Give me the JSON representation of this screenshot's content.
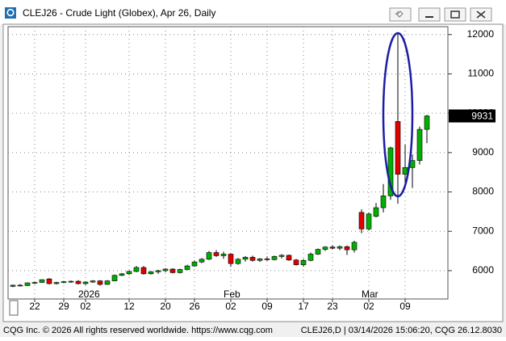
{
  "chart_data": {
    "type": "candlestick",
    "title": "CLEJ26 - Crude Light (Globex), Apr 26, Daily",
    "categories": [
      null,
      null,
      null,
      "22",
      null,
      null,
      null,
      "29",
      null,
      null,
      "02",
      null,
      null,
      null,
      null,
      null,
      "12",
      null,
      null,
      null,
      null,
      "20",
      null,
      null,
      null,
      "26",
      null,
      null,
      null,
      null,
      "02",
      null,
      null,
      null,
      null,
      "09",
      null,
      null,
      null,
      null,
      "17",
      null,
      null,
      null,
      "23",
      null,
      null,
      null,
      null,
      "02",
      null,
      null,
      null,
      null,
      "09",
      null,
      null,
      null
    ],
    "category_groups": [
      null,
      null,
      null,
      null,
      null,
      null,
      null,
      null,
      null,
      null,
      "2026",
      null,
      null,
      null,
      null,
      null,
      null,
      null,
      null,
      null,
      null,
      null,
      null,
      null,
      null,
      null,
      null,
      null,
      null,
      null,
      "Feb",
      null,
      null,
      null,
      null,
      null,
      null,
      null,
      null,
      null,
      null,
      null,
      null,
      null,
      null,
      null,
      null,
      null,
      null,
      "Mar",
      null,
      null,
      null,
      null,
      null,
      null,
      null,
      null
    ],
    "open": [
      5600,
      5630,
      5620,
      5690,
      5700,
      5790,
      5670,
      5700,
      5720,
      5730,
      5670,
      5710,
      5740,
      5650,
      5740,
      5880,
      5920,
      5980,
      6080,
      5920,
      5970,
      6000,
      6040,
      5950,
      6030,
      6120,
      6220,
      6290,
      6460,
      6380,
      6420,
      6180,
      6290,
      6340,
      6260,
      6300,
      6280,
      6360,
      6390,
      6270,
      6150,
      6260,
      6420,
      6540,
      6600,
      6570,
      6610,
      6530,
      7480,
      7060,
      7380,
      7600,
      7900,
      9790,
      8450,
      8620,
      8800,
      9590
    ],
    "high": [
      5650,
      5660,
      5700,
      5720,
      5780,
      5810,
      5720,
      5740,
      5750,
      5760,
      5730,
      5760,
      5760,
      5760,
      5900,
      5940,
      6000,
      6120,
      6120,
      5990,
      6020,
      6060,
      6060,
      6050,
      6150,
      6260,
      6320,
      6500,
      6520,
      6480,
      6440,
      6320,
      6370,
      6380,
      6320,
      6360,
      6380,
      6420,
      6410,
      6300,
      6300,
      6460,
      6560,
      6620,
      6640,
      6640,
      6640,
      6760,
      7560,
      7480,
      7720,
      8200,
      9150,
      12050,
      9200,
      8950,
      9660,
      9960
    ],
    "low": [
      5580,
      5600,
      5610,
      5660,
      5690,
      5650,
      5650,
      5680,
      5690,
      5650,
      5640,
      5690,
      5620,
      5640,
      5730,
      5860,
      5890,
      5960,
      5900,
      5900,
      5920,
      5960,
      5930,
      5930,
      6010,
      6100,
      6190,
      6270,
      6350,
      6300,
      6100,
      6150,
      6230,
      6230,
      6220,
      6250,
      6260,
      6310,
      6250,
      6130,
      6100,
      6240,
      6400,
      6500,
      6540,
      6520,
      6400,
      6460,
      6950,
      7020,
      7350,
      7480,
      7800,
      7700,
      8150,
      8100,
      8700,
      9240
    ],
    "close": [
      5630,
      5620,
      5690,
      5700,
      5770,
      5670,
      5700,
      5720,
      5730,
      5670,
      5710,
      5740,
      5650,
      5740,
      5880,
      5920,
      5980,
      6080,
      5920,
      5970,
      6000,
      6040,
      5950,
      6030,
      6120,
      6220,
      6290,
      6460,
      6380,
      6420,
      6180,
      6290,
      6340,
      6260,
      6300,
      6280,
      6360,
      6390,
      6270,
      6150,
      6260,
      6420,
      6540,
      6600,
      6570,
      6610,
      6530,
      6720,
      7060,
      7440,
      7600,
      7900,
      9120,
      8450,
      8620,
      8800,
      9590,
      9931
    ],
    "up_color": "#00b000",
    "down_color": "#e00000",
    "ylim": [
      5280,
      12200
    ],
    "yticks": [
      6000,
      7000,
      8000,
      9000,
      10000,
      11000,
      12000
    ],
    "grid": true
  },
  "footer": {
    "left": "CQG Inc. © 2026 All rights reserved worldwide. https://www.cqg.com",
    "right": "CLEJ26,D | 03/14/2026 15:06:20, CQG 26.12.8030"
  }
}
